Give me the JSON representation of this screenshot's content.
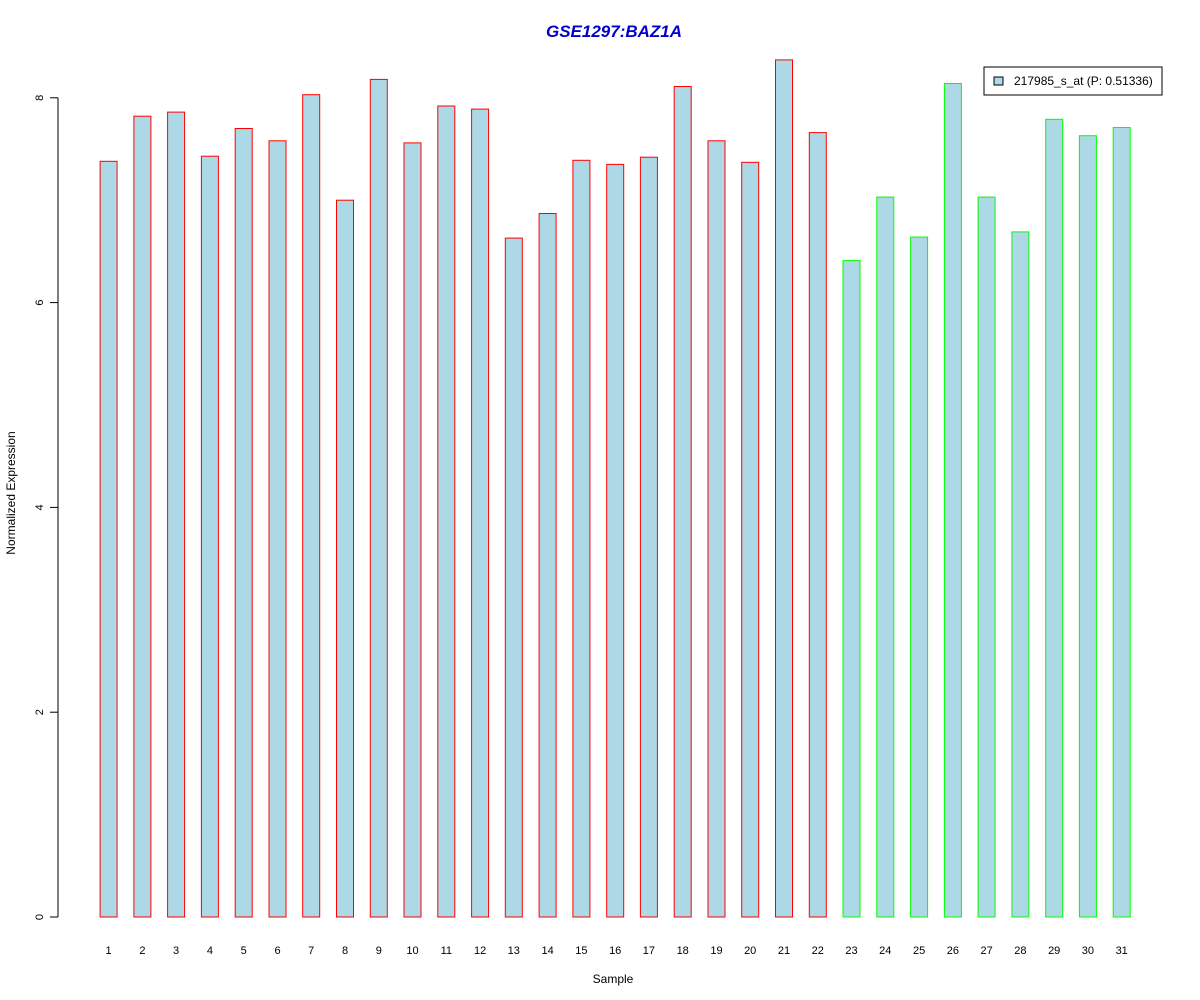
{
  "chart_data": {
    "type": "bar",
    "title": "GSE1297:BAZ1A",
    "xlabel": "Sample",
    "ylabel": "Normalized Expression",
    "ylim": [
      0,
      8.4
    ],
    "yticks": [
      0,
      2,
      4,
      6,
      8
    ],
    "categories": [
      "1",
      "2",
      "3",
      "4",
      "5",
      "6",
      "7",
      "8",
      "9",
      "10",
      "11",
      "12",
      "13",
      "14",
      "15",
      "16",
      "17",
      "18",
      "19",
      "20",
      "21",
      "22",
      "23",
      "24",
      "25",
      "26",
      "27",
      "28",
      "29",
      "30",
      "31"
    ],
    "values": [
      7.38,
      7.82,
      7.86,
      7.43,
      7.7,
      7.58,
      8.03,
      7.0,
      8.18,
      7.56,
      7.92,
      7.89,
      6.63,
      6.87,
      7.39,
      7.35,
      7.42,
      8.11,
      7.58,
      7.37,
      8.37,
      7.66,
      6.41,
      7.03,
      6.64,
      8.14,
      7.03,
      6.69,
      7.79,
      7.63,
      7.71
    ],
    "groups": [
      "red",
      "red",
      "red",
      "red",
      "red",
      "red",
      "red",
      "red",
      "red",
      "red",
      "red",
      "red",
      "red",
      "red",
      "red",
      "red",
      "red",
      "red",
      "red",
      "red",
      "red",
      "red",
      "green",
      "green",
      "green",
      "green",
      "green",
      "green",
      "green",
      "green",
      "green"
    ],
    "legend": {
      "label": "217985_s_at (P: 0.51336)",
      "position": "top-right"
    },
    "grid": false,
    "colors": {
      "fill": "#add8e6",
      "red": "#ff0000",
      "green": "#00ff00",
      "title": "#0000cc",
      "axis": "#000000"
    }
  }
}
